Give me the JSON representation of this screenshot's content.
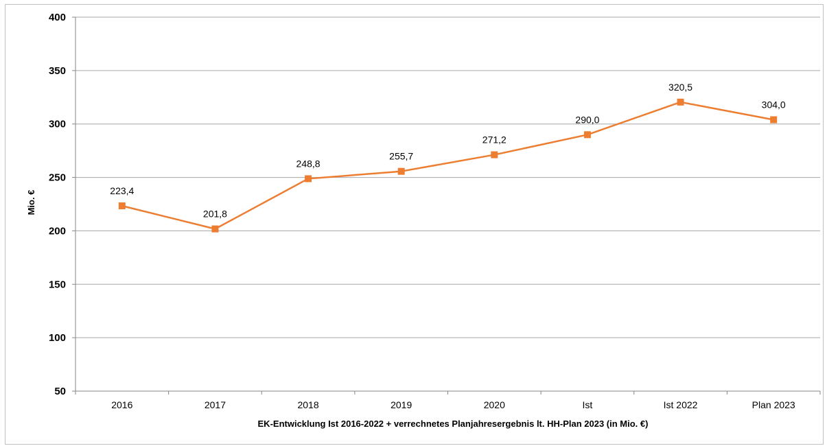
{
  "chart_data": {
    "type": "line",
    "title": "",
    "xlabel": "EK-Entwicklung  Ist 2016-2022 + verrechnetes Planjahresergebnis lt. HH-Plan 2023 (in Mio. €)",
    "ylabel": "Mio. €",
    "ylim": [
      50,
      400
    ],
    "yticks": [
      50,
      100,
      150,
      200,
      250,
      300,
      350,
      400
    ],
    "grid": true,
    "legend": "none",
    "categories": [
      "2016",
      "2017",
      "2018",
      "2019",
      "2020",
      "Ist",
      "Ist 2022",
      "Plan 2023"
    ],
    "series": [
      {
        "values": [
          223.4,
          201.8,
          248.8,
          255.7,
          271.2,
          290.0,
          320.5,
          304.0
        ],
        "labels": [
          "223,4",
          "201,8",
          "248,8",
          "255,7",
          "271,2",
          "290,0",
          "320,5",
          "304,0"
        ],
        "color": "#ed7d31"
      }
    ]
  }
}
